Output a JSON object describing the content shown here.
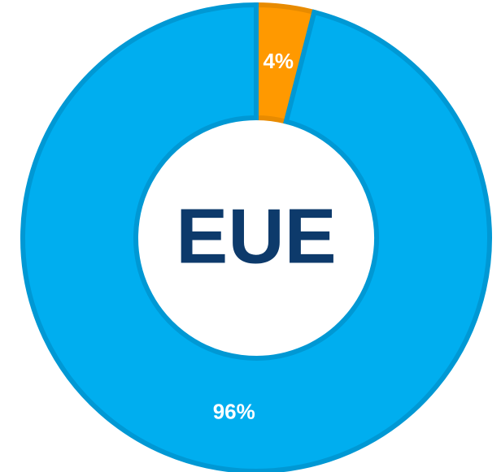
{
  "chart_data": {
    "type": "donut",
    "center_label": "EUE",
    "values": [
      4,
      96
    ],
    "value_labels": [
      "4%",
      "96%"
    ],
    "colors": [
      "#ff9900",
      "#00aeef"
    ],
    "stroke_colors": [
      "#e88b00",
      "#0098d4"
    ]
  }
}
